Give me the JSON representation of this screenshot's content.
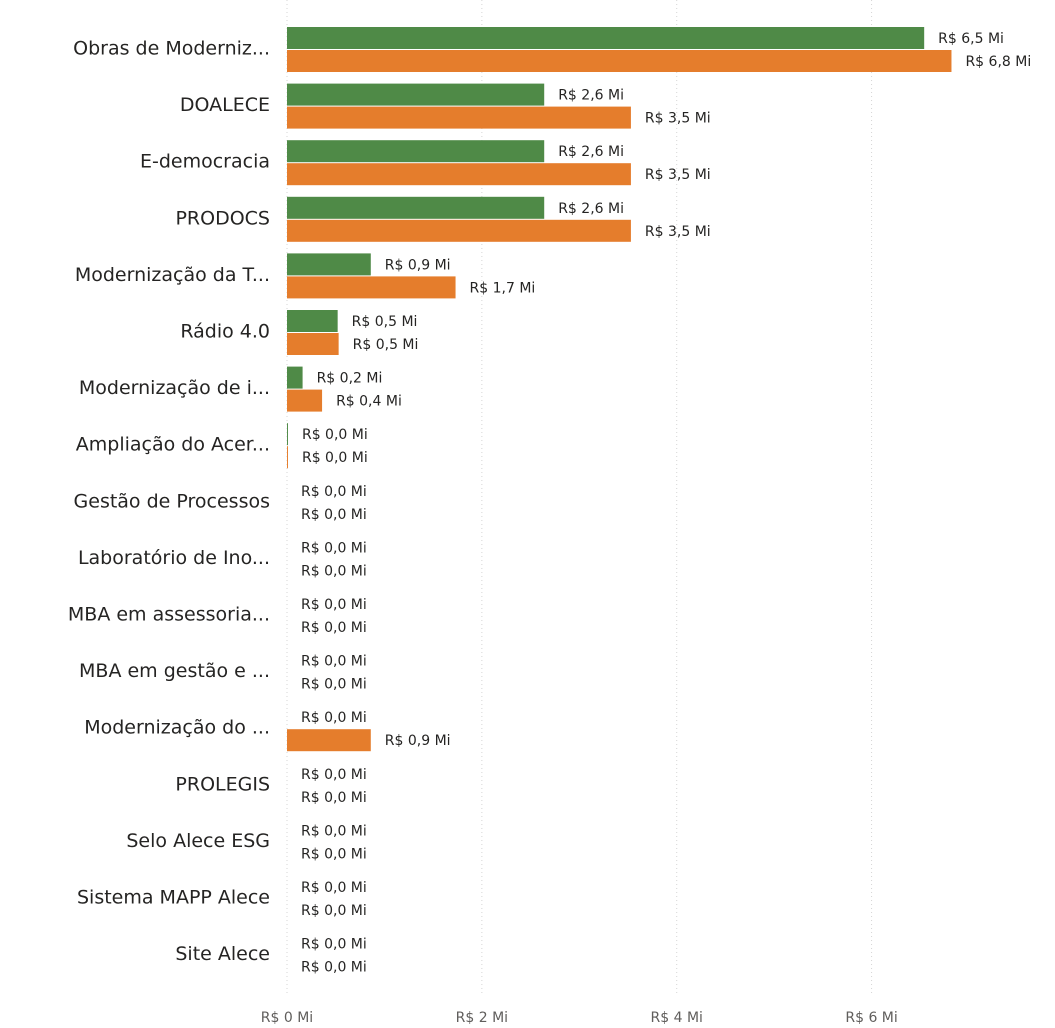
{
  "chart_data": {
    "type": "bar",
    "orientation": "horizontal",
    "categories": [
      "Obras de Moderniz...",
      "DOALECE",
      "E-democracia",
      "PRODOCS",
      "Modernização da T...",
      "Rádio 4.0",
      "Modernização de i...",
      "Ampliação do Acer...",
      "Gestão de Processos",
      "Laboratório de Ino...",
      "MBA em assessoria...",
      "MBA em gestão e ...",
      "Modernização do ...",
      "PROLEGIS",
      "Selo Alece ESG",
      "Sistema MAPP Alece",
      "Site Alece"
    ],
    "series": [
      {
        "color": "#4f8a47",
        "values": [
          6.54,
          2.64,
          2.64,
          2.64,
          0.86,
          0.52,
          0.16,
          0.01,
          0,
          0,
          0,
          0,
          0,
          0,
          0,
          0,
          0
        ],
        "value_labels": [
          "R$ 6,5 Mi",
          "R$ 2,6 Mi",
          "R$ 2,6 Mi",
          "R$ 2,6 Mi",
          "R$ 0,9 Mi",
          "R$ 0,5 Mi",
          "R$ 0,2 Mi",
          "R$ 0,0 Mi",
          "R$ 0,0 Mi",
          "R$ 0,0 Mi",
          "R$ 0,0 Mi",
          "R$ 0,0 Mi",
          "R$ 0,0 Mi",
          "R$ 0,0 Mi",
          "R$ 0,0 Mi",
          "R$ 0,0 Mi",
          "R$ 0,0 Mi"
        ]
      },
      {
        "color": "#e57d2c",
        "values": [
          6.82,
          3.53,
          3.53,
          3.53,
          1.73,
          0.53,
          0.36,
          0.01,
          0,
          0,
          0,
          0,
          0.86,
          0,
          0,
          0,
          0
        ],
        "value_labels": [
          "R$ 6,8 Mi",
          "R$ 3,5 Mi",
          "R$ 3,5 Mi",
          "R$ 3,5 Mi",
          "R$ 1,7 Mi",
          "R$ 0,5 Mi",
          "R$ 0,4 Mi",
          "R$ 0,0 Mi",
          "R$ 0,0 Mi",
          "R$ 0,0 Mi",
          "R$ 0,0 Mi",
          "R$ 0,0 Mi",
          "R$ 0,9 Mi",
          "R$ 0,0 Mi",
          "R$ 0,0 Mi",
          "R$ 0,0 Mi",
          "R$ 0,0 Mi"
        ]
      }
    ],
    "xlim": [
      0,
      7
    ],
    "xticks": [
      {
        "value": 0,
        "label": "R$ 0 Mi"
      },
      {
        "value": 2,
        "label": "R$ 2 Mi"
      },
      {
        "value": 4,
        "label": "R$ 4 Mi"
      },
      {
        "value": 6,
        "label": "R$ 6 Mi"
      }
    ],
    "grid": true
  }
}
